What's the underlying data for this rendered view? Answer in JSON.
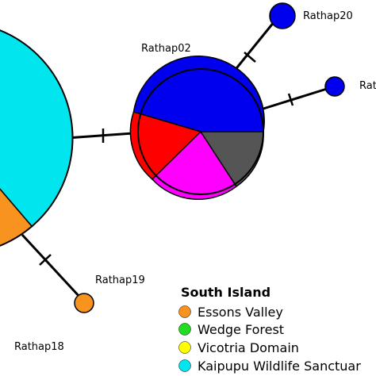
{
  "colors": {
    "essons_valley": "#f7931e",
    "wedge_forest": "#22dd22",
    "vicotria_domain": "#ffff00",
    "kaipupu": "#00e5ee",
    "blue": "#0000ee",
    "red": "#ff0000",
    "magenta": "#ff00ff",
    "grey": "#555555"
  },
  "nodes": {
    "rathap02": {
      "label": "Rathap02"
    },
    "rathap20": {
      "label": "Rathap20"
    },
    "rathap_cut": {
      "label": "Rat"
    },
    "rathap19": {
      "label": "Rathap19"
    },
    "rathap18": {
      "label": "Rathap18"
    }
  },
  "legend": {
    "title": "South Island",
    "items": [
      {
        "label": "Essons Valley",
        "color": "#f7931e"
      },
      {
        "label": "Wedge Forest",
        "color": "#22dd22"
      },
      {
        "label": "Vicotria Domain",
        "color": "#ffff00"
      },
      {
        "label": "Kaipupu Wildlife Sanctuar",
        "color": "#00e5ee"
      }
    ]
  }
}
